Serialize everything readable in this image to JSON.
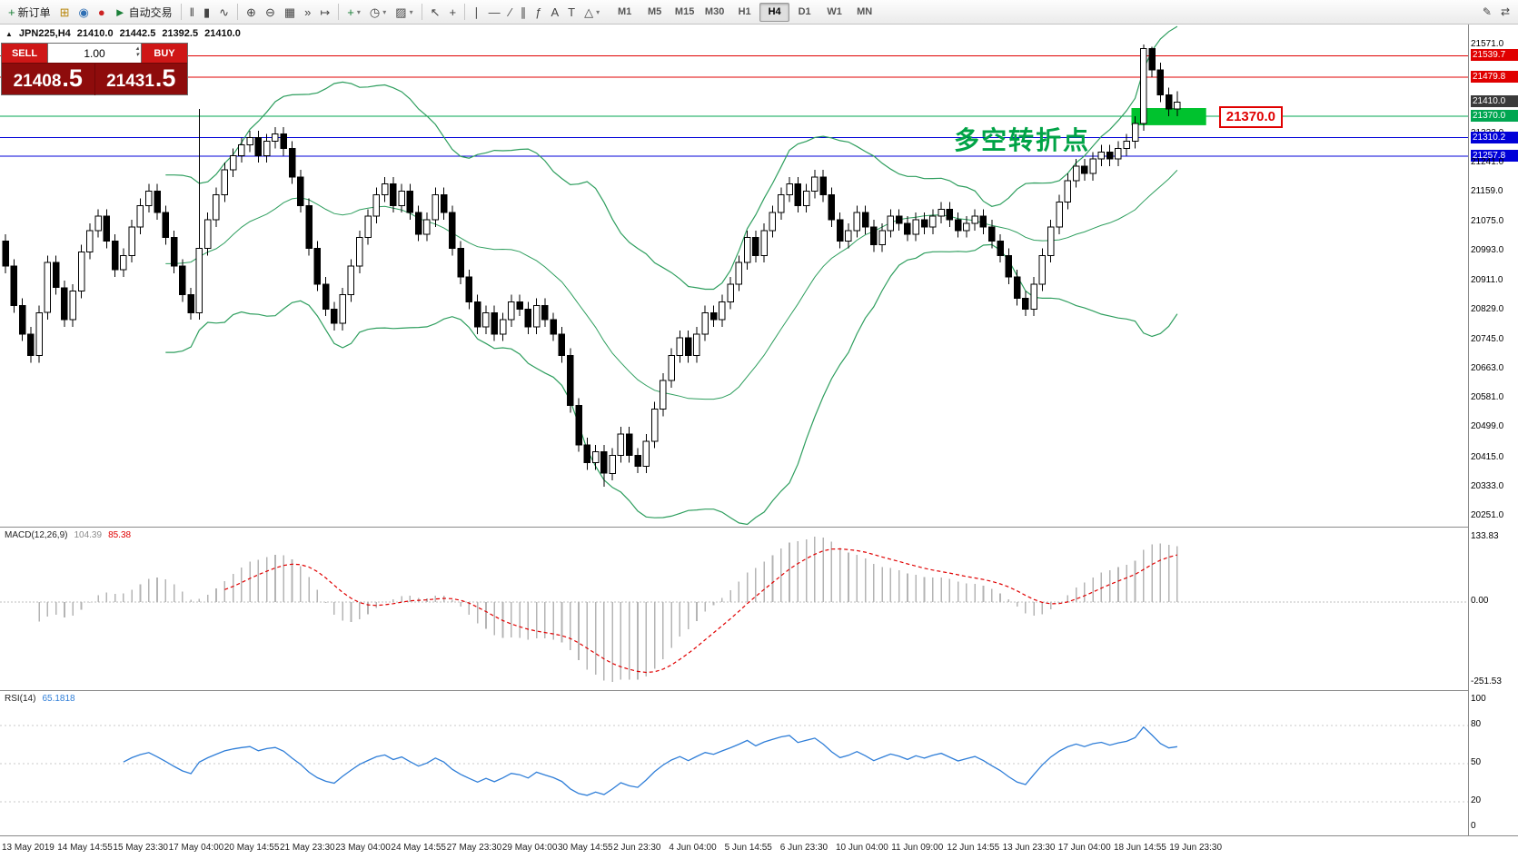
{
  "toolbar": {
    "left_buttons": [
      {
        "name": "new-order-button",
        "glyph": "+",
        "glyph_color": "#1a7f37",
        "label": "新订单"
      },
      {
        "name": "chart-window-icon",
        "glyph": "⊞",
        "glyph_color": "#b8860b"
      },
      {
        "name": "profile-icon",
        "glyph": "◉",
        "glyph_color": "#2f6fb4"
      },
      {
        "name": "community-icon",
        "glyph": "●",
        "glyph_color": "#c22"
      },
      {
        "name": "auto-trading-button",
        "glyph": "►",
        "glyph_color": "#1a7f37",
        "label": "自动交易"
      },
      {
        "sep": true
      },
      {
        "name": "bar-chart-type-button",
        "glyph": "‖"
      },
      {
        "name": "candlestick-chart-type-button",
        "glyph": "▮"
      },
      {
        "name": "line-chart-type-button",
        "glyph": "∿"
      },
      {
        "sep": true
      },
      {
        "name": "zoom-in-button",
        "glyph": "⊕"
      },
      {
        "name": "zoom-out-button",
        "glyph": "⊖"
      },
      {
        "name": "tile-windows-button",
        "glyph": "▦"
      },
      {
        "name": "auto-scroll-button",
        "glyph": "»"
      },
      {
        "name": "chart-shift-button",
        "glyph": "↦"
      },
      {
        "sep": true
      },
      {
        "name": "indicators-button",
        "glyph": "+",
        "glyph_color": "#1a7f37",
        "dropdown": true
      },
      {
        "name": "periods-button",
        "glyph": "◷",
        "dropdown": true
      },
      {
        "name": "templates-button",
        "glyph": "▨",
        "dropdown": true
      },
      {
        "sep": true
      },
      {
        "name": "cursor-button",
        "glyph": "↖"
      },
      {
        "name": "crosshair-button",
        "glyph": "+"
      },
      {
        "sep": true
      },
      {
        "name": "vertical-line-button",
        "glyph": "∣"
      },
      {
        "name": "horizontal-line-button",
        "glyph": "—"
      },
      {
        "name": "trendline-button",
        "glyph": "∕"
      },
      {
        "name": "equidistant-channel-button",
        "glyph": "∥"
      },
      {
        "name": "fibonacci-button",
        "glyph": "ƒ"
      },
      {
        "name": "text-button",
        "glyph": "A"
      },
      {
        "name": "text-label-button",
        "glyph": "T"
      },
      {
        "name": "shapes-button",
        "glyph": "△",
        "dropdown": true
      }
    ],
    "timeframes": [
      {
        "label": "M1"
      },
      {
        "label": "M5"
      },
      {
        "label": "M15"
      },
      {
        "label": "M30"
      },
      {
        "label": "H1"
      },
      {
        "label": "H4",
        "active": true
      },
      {
        "label": "D1"
      },
      {
        "label": "W1"
      },
      {
        "label": "MN"
      }
    ],
    "right_buttons": [
      {
        "name": "edit-pencil-icon",
        "glyph": "✎"
      },
      {
        "name": "switch-windows-icon",
        "glyph": "⇄"
      }
    ]
  },
  "symbol_info": {
    "expander": "▲",
    "symbol": "JPN225,H4",
    "open": "21410.0",
    "high": "21442.5",
    "low": "21392.5",
    "close": "21410.0"
  },
  "trade_panel": {
    "sell_label": "SELL",
    "buy_label": "BUY",
    "volume": "1.00",
    "sell_price_main": "21408",
    "sell_price_pip": ".5",
    "buy_price_main": "21431",
    "buy_price_pip": ".5"
  },
  "chart": {
    "price_labels": [
      {
        "text": "21571.0",
        "value": 21571.0,
        "type": "plain"
      },
      {
        "text": "21539.7",
        "value": 21539.7,
        "type": "red"
      },
      {
        "text": "21479.8",
        "value": 21479.8,
        "type": "red"
      },
      {
        "text": "21410.0",
        "value": 21410.0,
        "type": "current"
      },
      {
        "text": "21370.0",
        "value": 21370.0,
        "type": "green"
      },
      {
        "text": "21323.0",
        "value": 21323.0,
        "type": "plain"
      },
      {
        "text": "21310.2",
        "value": 21310.2,
        "type": "blue"
      },
      {
        "text": "21257.8",
        "value": 21257.8,
        "type": "blue"
      },
      {
        "text": "21241.0",
        "value": 21241.0,
        "type": "plain"
      },
      {
        "text": "21159.0",
        "value": 21159.0,
        "type": "plain"
      },
      {
        "text": "21075.0",
        "value": 21075.0,
        "type": "plain"
      },
      {
        "text": "20993.0",
        "value": 20993.0,
        "type": "plain"
      },
      {
        "text": "20911.0",
        "value": 20911.0,
        "type": "plain"
      },
      {
        "text": "20829.0",
        "value": 20829.0,
        "type": "plain"
      },
      {
        "text": "20745.0",
        "value": 20745.0,
        "type": "plain"
      },
      {
        "text": "20663.0",
        "value": 20663.0,
        "type": "plain"
      },
      {
        "text": "20581.0",
        "value": 20581.0,
        "type": "plain"
      },
      {
        "text": "20499.0",
        "value": 20499.0,
        "type": "plain"
      },
      {
        "text": "20415.0",
        "value": 20415.0,
        "type": "plain"
      },
      {
        "text": "20333.0",
        "value": 20333.0,
        "type": "plain"
      },
      {
        "text": "20251.0",
        "value": 20251.0,
        "type": "plain"
      }
    ],
    "hlines": [
      {
        "value": 21539.7,
        "color": "#e00000"
      },
      {
        "value": 21479.8,
        "color": "#e00000"
      },
      {
        "value": 21370.0,
        "color": "#00a651"
      },
      {
        "value": 21310.2,
        "color": "#0000d8"
      },
      {
        "value": 21257.8,
        "color": "#0000d8"
      }
    ],
    "annotation": {
      "text": "多空转折点",
      "color": "#00a346"
    },
    "highlight_box": {
      "from_candle": 134,
      "to_candle": 142,
      "price_top": 21393,
      "price_bottom": 21345,
      "color": "#00c22e"
    },
    "callout": {
      "text": "21370.0",
      "color": "#e00000"
    },
    "colors": {
      "up": "#ffffff",
      "down": "#000000",
      "outline": "#000000",
      "bollinger": "#2e9e5e"
    }
  },
  "macd_panel": {
    "title": "MACD(12,26,9)",
    "value_main": "104.39",
    "value_signal": "85.38",
    "axis_top": "133.83",
    "axis_zero": "0.00",
    "axis_bottom": "-251.53",
    "histogram_color": "#b4b4b4",
    "signal_color": "#e00000"
  },
  "rsi_panel": {
    "title": "RSI(14)",
    "value": "65.1818",
    "axis_labels": [
      {
        "text": "100",
        "value": 100
      },
      {
        "text": "80",
        "value": 80
      },
      {
        "text": "50",
        "value": 50
      },
      {
        "text": "20",
        "value": 20
      },
      {
        "text": "0",
        "value": 0
      }
    ],
    "levels": [
      80,
      50,
      20
    ],
    "line_color": "#2f7ed8"
  },
  "chart_data": {
    "type": "candlestick",
    "symbol": "JPN225",
    "timeframe": "H4",
    "y_range": [
      20251,
      21571
    ],
    "indicators": [
      {
        "name": "Bollinger Bands",
        "period": 20,
        "deviation": 2
      },
      {
        "name": "MACD",
        "fast": 12,
        "slow": 26,
        "signal": 9,
        "values": [
          104.39,
          85.38
        ],
        "axis": [
          133.83,
          0.0,
          -251.53
        ]
      },
      {
        "name": "RSI",
        "period": 14,
        "value": 65.1818
      }
    ],
    "x_labels": [
      "13 May 2019",
      "14 May 14:55",
      "15 May 23:30",
      "17 May 04:00",
      "20 May 14:55",
      "21 May 23:30",
      "23 May 04:00",
      "24 May 14:55",
      "27 May 23:30",
      "29 May 04:00",
      "30 May 14:55",
      "2 Jun 23:30",
      "4 Jun 04:00",
      "5 Jun 14:55",
      "6 Jun 23:30",
      "10 Jun 04:00",
      "11 Jun 09:00",
      "12 Jun 14:55",
      "13 Jun 23:30",
      "17 Jun 04:00",
      "18 Jun 14:55",
      "19 Jun 23:30"
    ],
    "ohlc": [
      [
        21020,
        21040,
        20930,
        20950
      ],
      [
        20950,
        20970,
        20820,
        20840
      ],
      [
        20840,
        20860,
        20740,
        20760
      ],
      [
        20760,
        20780,
        20680,
        20700
      ],
      [
        20700,
        20840,
        20680,
        20820
      ],
      [
        20820,
        20980,
        20800,
        20960
      ],
      [
        20960,
        20980,
        20870,
        20890
      ],
      [
        20890,
        20910,
        20780,
        20800
      ],
      [
        20800,
        20900,
        20780,
        20880
      ],
      [
        20880,
        21010,
        20860,
        20990
      ],
      [
        20990,
        21070,
        20970,
        21050
      ],
      [
        21050,
        21110,
        21030,
        21090
      ],
      [
        21090,
        21110,
        21000,
        21020
      ],
      [
        21020,
        21040,
        20920,
        20940
      ],
      [
        20940,
        21000,
        20920,
        20980
      ],
      [
        20980,
        21080,
        20960,
        21060
      ],
      [
        21060,
        21140,
        21040,
        21120
      ],
      [
        21120,
        21180,
        21100,
        21160
      ],
      [
        21160,
        21180,
        21080,
        21100
      ],
      [
        21100,
        21120,
        21010,
        21030
      ],
      [
        21030,
        21050,
        20930,
        20950
      ],
      [
        20950,
        20970,
        20850,
        20870
      ],
      [
        20870,
        20890,
        20800,
        20820
      ],
      [
        20820,
        21390,
        20800,
        21000
      ],
      [
        21000,
        21100,
        20980,
        21080
      ],
      [
        21080,
        21170,
        21060,
        21150
      ],
      [
        21150,
        21240,
        21130,
        21220
      ],
      [
        21220,
        21280,
        21200,
        21260
      ],
      [
        21260,
        21310,
        21240,
        21290
      ],
      [
        21290,
        21330,
        21270,
        21310
      ],
      [
        21310,
        21330,
        21240,
        21260
      ],
      [
        21260,
        21320,
        21240,
        21300
      ],
      [
        21300,
        21340,
        21280,
        21320
      ],
      [
        21320,
        21340,
        21260,
        21280
      ],
      [
        21280,
        21300,
        21180,
        21200
      ],
      [
        21200,
        21220,
        21100,
        21120
      ],
      [
        21120,
        21140,
        20980,
        21000
      ],
      [
        21000,
        21020,
        20880,
        20900
      ],
      [
        20900,
        20920,
        20810,
        20830
      ],
      [
        20830,
        20850,
        20770,
        20790
      ],
      [
        20790,
        20890,
        20770,
        20870
      ],
      [
        20870,
        20970,
        20850,
        20950
      ],
      [
        20950,
        21050,
        20930,
        21030
      ],
      [
        21030,
        21110,
        21010,
        21090
      ],
      [
        21090,
        21170,
        21070,
        21150
      ],
      [
        21150,
        21200,
        21130,
        21180
      ],
      [
        21180,
        21200,
        21100,
        21120
      ],
      [
        21120,
        21180,
        21100,
        21160
      ],
      [
        21160,
        21180,
        21080,
        21100
      ],
      [
        21100,
        21120,
        21020,
        21040
      ],
      [
        21040,
        21100,
        21020,
        21080
      ],
      [
        21080,
        21170,
        21060,
        21150
      ],
      [
        21150,
        21170,
        21080,
        21100
      ],
      [
        21100,
        21120,
        20980,
        21000
      ],
      [
        21000,
        21020,
        20900,
        20920
      ],
      [
        20920,
        20940,
        20830,
        20850
      ],
      [
        20850,
        20870,
        20760,
        20780
      ],
      [
        20780,
        20840,
        20760,
        20820
      ],
      [
        20820,
        20840,
        20740,
        20760
      ],
      [
        20760,
        20820,
        20740,
        20800
      ],
      [
        20800,
        20870,
        20780,
        20850
      ],
      [
        20850,
        20870,
        20810,
        20830
      ],
      [
        20830,
        20850,
        20760,
        20780
      ],
      [
        20780,
        20860,
        20760,
        20840
      ],
      [
        20840,
        20860,
        20780,
        20800
      ],
      [
        20800,
        20820,
        20740,
        20760
      ],
      [
        20760,
        20780,
        20680,
        20700
      ],
      [
        20700,
        20720,
        20540,
        20560
      ],
      [
        20560,
        20580,
        20430,
        20450
      ],
      [
        20450,
        20470,
        20380,
        20400
      ],
      [
        20400,
        20450,
        20380,
        20430
      ],
      [
        20430,
        20450,
        20333,
        20370
      ],
      [
        20370,
        20440,
        20350,
        20420
      ],
      [
        20420,
        20500,
        20400,
        20480
      ],
      [
        20480,
        20500,
        20400,
        20420
      ],
      [
        20420,
        20440,
        20370,
        20390
      ],
      [
        20390,
        20480,
        20370,
        20460
      ],
      [
        20460,
        20570,
        20440,
        20550
      ],
      [
        20550,
        20650,
        20530,
        20630
      ],
      [
        20630,
        20720,
        20610,
        20700
      ],
      [
        20700,
        20770,
        20680,
        20750
      ],
      [
        20750,
        20770,
        20680,
        20700
      ],
      [
        20700,
        20780,
        20680,
        20760
      ],
      [
        20760,
        20840,
        20740,
        20820
      ],
      [
        20820,
        20840,
        20780,
        20800
      ],
      [
        20800,
        20870,
        20780,
        20850
      ],
      [
        20850,
        20920,
        20830,
        20900
      ],
      [
        20900,
        20980,
        20880,
        20960
      ],
      [
        20960,
        21050,
        20940,
        21030
      ],
      [
        21030,
        21050,
        20960,
        20980
      ],
      [
        20980,
        21070,
        20960,
        21050
      ],
      [
        21050,
        21120,
        21030,
        21100
      ],
      [
        21100,
        21170,
        21080,
        21150
      ],
      [
        21150,
        21200,
        21130,
        21180
      ],
      [
        21180,
        21200,
        21100,
        21120
      ],
      [
        21120,
        21180,
        21100,
        21160
      ],
      [
        21160,
        21220,
        21140,
        21200
      ],
      [
        21200,
        21220,
        21130,
        21150
      ],
      [
        21150,
        21170,
        21060,
        21080
      ],
      [
        21080,
        21100,
        21000,
        21020
      ],
      [
        21020,
        21070,
        21000,
        21050
      ],
      [
        21050,
        21120,
        21030,
        21100
      ],
      [
        21100,
        21120,
        21040,
        21060
      ],
      [
        21060,
        21080,
        20990,
        21010
      ],
      [
        21010,
        21070,
        20990,
        21050
      ],
      [
        21050,
        21110,
        21030,
        21090
      ],
      [
        21090,
        21110,
        21050,
        21070
      ],
      [
        21070,
        21090,
        21020,
        21040
      ],
      [
        21040,
        21100,
        21020,
        21080
      ],
      [
        21080,
        21100,
        21040,
        21060
      ],
      [
        21060,
        21110,
        21040,
        21090
      ],
      [
        21090,
        21130,
        21070,
        21110
      ],
      [
        21110,
        21130,
        21060,
        21080
      ],
      [
        21080,
        21100,
        21030,
        21050
      ],
      [
        21050,
        21090,
        21030,
        21070
      ],
      [
        21070,
        21110,
        21050,
        21090
      ],
      [
        21090,
        21110,
        21040,
        21060
      ],
      [
        21060,
        21080,
        21000,
        21020
      ],
      [
        21020,
        21040,
        20960,
        20980
      ],
      [
        20980,
        21000,
        20900,
        20920
      ],
      [
        20920,
        20940,
        20840,
        20860
      ],
      [
        20860,
        20880,
        20810,
        20830
      ],
      [
        20830,
        20920,
        20810,
        20900
      ],
      [
        20900,
        21000,
        20880,
        20980
      ],
      [
        20980,
        21080,
        20960,
        21060
      ],
      [
        21060,
        21150,
        21040,
        21130
      ],
      [
        21130,
        21210,
        21110,
        21190
      ],
      [
        21190,
        21250,
        21170,
        21230
      ],
      [
        21230,
        21250,
        21190,
        21210
      ],
      [
        21210,
        21270,
        21190,
        21250
      ],
      [
        21250,
        21290,
        21230,
        21270
      ],
      [
        21270,
        21290,
        21230,
        21250
      ],
      [
        21250,
        21300,
        21230,
        21280
      ],
      [
        21280,
        21320,
        21260,
        21300
      ],
      [
        21300,
        21370,
        21280,
        21350
      ],
      [
        21350,
        21571,
        21330,
        21560
      ],
      [
        21560,
        21565,
        21480,
        21500
      ],
      [
        21500,
        21520,
        21410,
        21430
      ],
      [
        21430,
        21450,
        21370,
        21390
      ],
      [
        21390,
        21440,
        21370,
        21410
      ]
    ]
  }
}
